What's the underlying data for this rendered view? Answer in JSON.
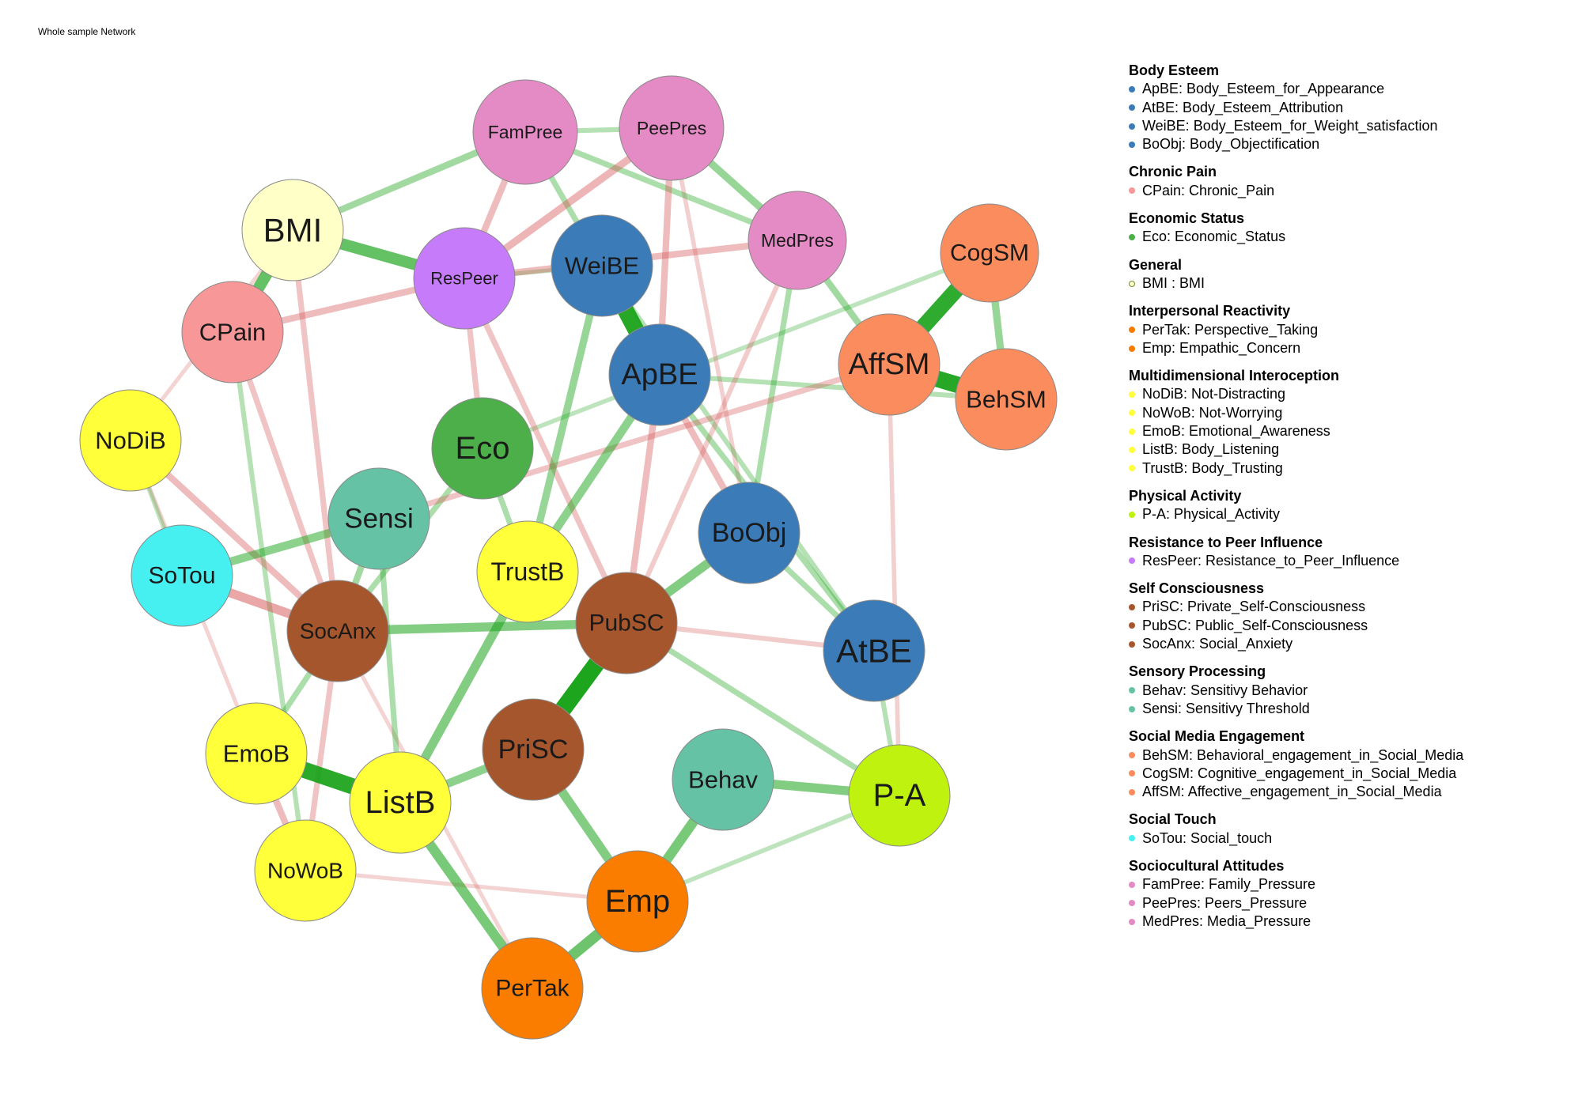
{
  "title": "Whole sample Network",
  "colors": {
    "positive": "#1aa31a",
    "negative": "#d65c5c"
  },
  "nodes": [
    {
      "id": "FamPree",
      "group": "Sociocultural Attitudes",
      "color": "#e48ac4"
    },
    {
      "id": "PeePres",
      "group": "Sociocultural Attitudes",
      "color": "#e48ac4"
    },
    {
      "id": "MedPres",
      "group": "Sociocultural Attitudes",
      "color": "#e48ac4"
    },
    {
      "id": "BMI",
      "group": "General",
      "color": "#ffffc8"
    },
    {
      "id": "ResPeer",
      "group": "Resistance to Peer Influence",
      "color": "#c67cfa"
    },
    {
      "id": "WeiBE",
      "group": "Body Esteem",
      "color": "#3a7bb8"
    },
    {
      "id": "CogSM",
      "group": "Social Media Engagement",
      "color": "#fb8c5d"
    },
    {
      "id": "CPain",
      "group": "Chronic Pain",
      "color": "#f79797"
    },
    {
      "id": "ApBE",
      "group": "Body Esteem",
      "color": "#3a7bb8"
    },
    {
      "id": "AffSM",
      "group": "Social Media Engagement",
      "color": "#fb8c5d"
    },
    {
      "id": "BehSM",
      "group": "Social Media Engagement",
      "color": "#fb8c5d"
    },
    {
      "id": "NoDiB",
      "group": "Multidimensional Interoception",
      "color": "#ffff3a"
    },
    {
      "id": "Eco",
      "group": "Economic Status",
      "color": "#4daf4a"
    },
    {
      "id": "Sensi",
      "group": "Sensory Processing",
      "color": "#66c2a5"
    },
    {
      "id": "BoObj",
      "group": "Body Esteem",
      "color": "#3a7bb8"
    },
    {
      "id": "SoTou",
      "group": "Social Touch",
      "color": "#47f0f0"
    },
    {
      "id": "TrustB",
      "group": "Multidimensional Interoception",
      "color": "#ffff3a"
    },
    {
      "id": "SocAnx",
      "group": "Self Consciousness",
      "color": "#a6562c"
    },
    {
      "id": "PubSC",
      "group": "Self Consciousness",
      "color": "#a6562c"
    },
    {
      "id": "AtBE",
      "group": "Body Esteem",
      "color": "#3a7bb8"
    },
    {
      "id": "EmoB",
      "group": "Multidimensional Interoception",
      "color": "#ffff3a"
    },
    {
      "id": "PriSC",
      "group": "Self Consciousness",
      "color": "#a6562c"
    },
    {
      "id": "Behav",
      "group": "Sensory Processing",
      "color": "#66c2a5"
    },
    {
      "id": "P-A",
      "group": "Physical Activity",
      "color": "#bff20e"
    },
    {
      "id": "ListB",
      "group": "Multidimensional Interoception",
      "color": "#ffff3a"
    },
    {
      "id": "NoWoB",
      "group": "Multidimensional Interoception",
      "color": "#ffff3a"
    },
    {
      "id": "Emp",
      "group": "Interpersonal Reactivity",
      "color": "#fa7d00"
    },
    {
      "id": "PerTak",
      "group": "Interpersonal Reactivity",
      "color": "#fa7d00"
    }
  ],
  "edges": [
    {
      "source": "PubSC",
      "target": "PriSC",
      "weight": 0.35
    },
    {
      "source": "AffSM",
      "target": "CogSM",
      "weight": 0.32
    },
    {
      "source": "AffSM",
      "target": "BehSM",
      "weight": 0.34
    },
    {
      "source": "WeiBE",
      "target": "ApBE",
      "weight": 0.34
    },
    {
      "source": "EmoB",
      "target": "ListB",
      "weight": 0.33
    },
    {
      "source": "BMI",
      "target": "CPain",
      "weight": 0.22
    },
    {
      "source": "BMI",
      "target": "ResPeer",
      "weight": 0.22
    },
    {
      "source": "PerTak",
      "target": "Emp",
      "weight": 0.2
    },
    {
      "source": "Emp",
      "target": "Behav",
      "weight": 0.18
    },
    {
      "source": "ListB",
      "target": "PerTak",
      "weight": 0.18
    },
    {
      "source": "PriSC",
      "target": "Emp",
      "weight": 0.16
    },
    {
      "source": "TrustB",
      "target": "ListB",
      "weight": 0.16
    },
    {
      "source": "Behav",
      "target": "P-A",
      "weight": 0.16
    },
    {
      "source": "PubSC",
      "target": "BoObj",
      "weight": 0.16
    },
    {
      "source": "SocAnx",
      "target": "PubSC",
      "weight": 0.16
    },
    {
      "source": "Sensi",
      "target": "SoTou",
      "weight": 0.14
    },
    {
      "source": "ApBE",
      "target": "TrustB",
      "weight": 0.14
    },
    {
      "source": "WeiBE",
      "target": "TrustB",
      "weight": 0.12
    },
    {
      "source": "ListB",
      "target": "PriSC",
      "weight": 0.14
    },
    {
      "source": "PeePres",
      "target": "MedPres",
      "weight": 0.12
    },
    {
      "source": "CogSM",
      "target": "BehSM",
      "weight": 0.12
    },
    {
      "source": "MedPres",
      "target": "AffSM",
      "weight": 0.1
    },
    {
      "source": "FamPree",
      "target": "BMI",
      "weight": 0.1
    },
    {
      "source": "FamPree",
      "target": "WeiBE",
      "weight": 0.08
    },
    {
      "source": "FamPree",
      "target": "MedPres",
      "weight": 0.08
    },
    {
      "source": "MedPres",
      "target": "BoObj",
      "weight": 0.08
    },
    {
      "source": "BoObj",
      "target": "AtBE",
      "weight": 0.08
    },
    {
      "source": "AtBE",
      "target": "P-A",
      "weight": 0.06
    },
    {
      "source": "Eco",
      "target": "SocAnx",
      "weight": 0.08
    },
    {
      "source": "Eco",
      "target": "TrustB",
      "weight": 0.08
    },
    {
      "source": "Sensi",
      "target": "SocAnx",
      "weight": 0.1
    },
    {
      "source": "Sensi",
      "target": "ListB",
      "weight": 0.08
    },
    {
      "source": "SocAnx",
      "target": "EmoB",
      "weight": 0.08
    },
    {
      "source": "BehSM",
      "target": "ApBE",
      "weight": 0.06
    },
    {
      "source": "CPain",
      "target": "NoWoB",
      "weight": 0.06
    },
    {
      "source": "ApBE",
      "target": "AtBE",
      "weight": 0.08
    },
    {
      "source": "PubSC",
      "target": "P-A",
      "weight": 0.08
    },
    {
      "source": "WeiBE",
      "target": "AtBE",
      "weight": 0.06
    },
    {
      "source": "NoDiB",
      "target": "SoTou",
      "weight": 0.05
    },
    {
      "source": "Emp",
      "target": "P-A",
      "weight": 0.05
    },
    {
      "source": "FamPree",
      "target": "PeePres",
      "weight": 0.06
    },
    {
      "source": "CogSM",
      "target": "Eco",
      "weight": 0.05
    },
    {
      "source": "ResPeer",
      "target": "WeiBE",
      "weight": 0.05
    },
    {
      "source": "FamPree",
      "target": "ResPeer",
      "weight": -0.1
    },
    {
      "source": "PeePres",
      "target": "ResPeer",
      "weight": -0.12
    },
    {
      "source": "ResPeer",
      "target": "MedPres",
      "weight": -0.1
    },
    {
      "source": "PeePres",
      "target": "ApBE",
      "weight": -0.1
    },
    {
      "source": "ResPeer",
      "target": "CPain",
      "weight": -0.1
    },
    {
      "source": "ResPeer",
      "target": "PubSC",
      "weight": -0.08
    },
    {
      "source": "ResPeer",
      "target": "Eco",
      "weight": -0.08
    },
    {
      "source": "BMI",
      "target": "SocAnx",
      "weight": -0.08
    },
    {
      "source": "CPain",
      "target": "SocAnx",
      "weight": -0.08
    },
    {
      "source": "NoDiB",
      "target": "SocAnx",
      "weight": -0.1
    },
    {
      "source": "SoTou",
      "target": "SocAnx",
      "weight": -0.16
    },
    {
      "source": "ApBE",
      "target": "BoObj",
      "weight": -0.1
    },
    {
      "source": "ApBE",
      "target": "PubSC",
      "weight": -0.1
    },
    {
      "source": "AffSM",
      "target": "Sensi",
      "weight": -0.08
    },
    {
      "source": "SocAnx",
      "target": "NoWoB",
      "weight": -0.08
    },
    {
      "source": "EmoB",
      "target": "NoWoB",
      "weight": -0.1
    },
    {
      "source": "PubSC",
      "target": "AtBE",
      "weight": -0.06
    },
    {
      "source": "MedPres",
      "target": "PubSC",
      "weight": -0.06
    },
    {
      "source": "PeePres",
      "target": "BoObj",
      "weight": -0.05
    },
    {
      "source": "AffSM",
      "target": "P-A",
      "weight": -0.05
    },
    {
      "source": "NoWoB",
      "target": "Emp",
      "weight": -0.04
    },
    {
      "source": "PerTak",
      "target": "SocAnx",
      "weight": -0.04
    },
    {
      "source": "BMI",
      "target": "NoDiB",
      "weight": -0.04
    },
    {
      "source": "NoDiB",
      "target": "EmoB",
      "weight": -0.04
    }
  ],
  "legend": [
    {
      "group": "Body Esteem",
      "color": "#3a7bb8",
      "items": [
        "ApBE: Body_Esteem_for_Appearance",
        "AtBE: Body_Esteem_Attribution",
        "WeiBE: Body_Esteem_for_Weight_satisfaction",
        "BoObj: Body_Objectification"
      ]
    },
    {
      "group": "Chronic Pain",
      "color": "#f79797",
      "items": [
        "CPain: Chronic_Pain"
      ]
    },
    {
      "group": "Economic Status",
      "color": "#4daf4a",
      "items": [
        "Eco: Economic_Status"
      ]
    },
    {
      "group": "General",
      "color": "#ffffc8",
      "items": [
        "BMI : BMI"
      ]
    },
    {
      "group": "Interpersonal Reactivity",
      "color": "#fa7d00",
      "items": [
        "PerTak: Perspective_Taking",
        "Emp: Empathic_Concern"
      ]
    },
    {
      "group": "Multidimensional Interoception",
      "color": "#ffff3a",
      "items": [
        "NoDiB: Not-Distracting",
        "NoWoB: Not-Worrying",
        "EmoB: Emotional_Awareness",
        "ListB: Body_Listening",
        "TrustB: Body_Trusting"
      ]
    },
    {
      "group": "Physical Activity",
      "color": "#bff20e",
      "items": [
        "P-A: Physical_Activity"
      ]
    },
    {
      "group": "Resistance to Peer Influence",
      "color": "#c67cfa",
      "items": [
        "ResPeer: Resistance_to_Peer_Influence"
      ]
    },
    {
      "group": "Self Consciousness",
      "color": "#a6562c",
      "items": [
        "PriSC: Private_Self-Consciousness",
        "PubSC: Public_Self-Consciousness",
        "SocAnx: Social_Anxiety"
      ]
    },
    {
      "group": "Sensory Processing",
      "color": "#66c2a5",
      "items": [
        "Behav: Sensitivy Behavior",
        "Sensi: Sensitivy Threshold"
      ]
    },
    {
      "group": "Social Media Engagement",
      "color": "#fb8c5d",
      "items": [
        "BehSM: Behavioral_engagement_in_Social_Media",
        "CogSM: Cognitive_engagement_in_Social_Media",
        "AffSM: Affective_engagement_in_Social_Media"
      ]
    },
    {
      "group": "Social Touch",
      "color": "#47f0f0",
      "items": [
        "SoTou: Social_touch"
      ]
    },
    {
      "group": "Sociocultural Attitudes",
      "color": "#e48ac4",
      "items": [
        "FamPree: Family_Pressure",
        "PeePres: Peers_Pressure",
        "MedPres: Media_Pressure"
      ]
    }
  ]
}
